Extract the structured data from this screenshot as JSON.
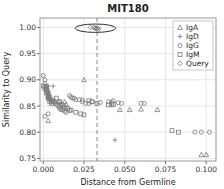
{
  "chart_data": {
    "type": "scatter",
    "title": "MIT180",
    "xlabel": "Distance from Germline",
    "ylabel": "Similarity to Query",
    "xlim": [
      -0.002,
      0.106
    ],
    "ylim": [
      0.745,
      1.018
    ],
    "xticks": [
      {
        "value": 0.0,
        "label": "0.000"
      },
      {
        "value": 0.025,
        "label": "0.025"
      },
      {
        "value": 0.05,
        "label": "0.050"
      },
      {
        "value": 0.075,
        "label": "0.075"
      },
      {
        "value": 0.1,
        "label": "0.100"
      }
    ],
    "yticks": [
      0.75,
      {
        "value": 0.8,
        "label": "0.80"
      },
      0.85,
      {
        "value": 0.9,
        "label": "0.90"
      },
      0.95,
      {
        "value": 1.0,
        "label": "1.00"
      }
    ],
    "grid": true,
    "legend": "upper right",
    "series": [
      {
        "name": "IgA",
        "color": "#7a7a7a",
        "marker": "triangle",
        "x": [
          0.003,
          0.01,
          0.013,
          0.014,
          0.025,
          0.047,
          0.053,
          0.06,
          0.07,
          0.097,
          0.1
        ],
        "values": [
          0.822,
          0.858,
          0.858,
          0.853,
          0.9,
          0.843,
          0.843,
          0.844,
          0.843,
          0.757,
          0.757
        ]
      },
      {
        "name": "IgD",
        "color": "#7a7a7a",
        "marker": "plus",
        "x": [
          0.003,
          0.003,
          0.004,
          0.006,
          0.044
        ],
        "values": [
          0.888,
          0.865,
          0.862,
          0.888,
          0.785
        ]
      },
      {
        "name": "IgG",
        "color": "#7a7a7a",
        "marker": "circle",
        "x": [
          0.0,
          0.001,
          0.001,
          0.001,
          0.002,
          0.002,
          0.002,
          0.002,
          0.003,
          0.003,
          0.003,
          0.003,
          0.004,
          0.004,
          0.004,
          0.005,
          0.005,
          0.006,
          0.007,
          0.007,
          0.008,
          0.009,
          0.01,
          0.01,
          0.011,
          0.012,
          0.013,
          0.014,
          0.016,
          0.017,
          0.018,
          0.019,
          0.02,
          0.022,
          0.024,
          0.024,
          0.026,
          0.028,
          0.03,
          0.035,
          0.04,
          0.042,
          0.043,
          0.046,
          0.048,
          0.06,
          0.062,
          0.001,
          0.003,
          0.093,
          0.097,
          0.102
        ],
        "values": [
          0.908,
          0.9,
          0.893,
          0.888,
          0.888,
          0.885,
          0.882,
          0.878,
          0.878,
          0.875,
          0.873,
          0.87,
          0.868,
          0.865,
          0.862,
          0.862,
          0.858,
          0.858,
          0.858,
          0.856,
          0.853,
          0.85,
          0.848,
          0.845,
          0.843,
          0.843,
          0.84,
          0.838,
          0.87,
          0.867,
          0.865,
          0.865,
          0.862,
          0.862,
          0.862,
          0.858,
          0.855,
          0.855,
          0.858,
          0.857,
          0.858,
          0.857,
          0.86,
          0.856,
          0.855,
          0.855,
          0.855,
          0.83,
          0.835,
          0.8,
          0.8,
          0.8
        ]
      },
      {
        "name": "IgM",
        "color": "#7a7a7a",
        "marker": "square",
        "x": [
          0.0,
          0.001,
          0.002,
          0.002,
          0.003,
          0.003,
          0.004,
          0.005,
          0.006,
          0.008,
          0.01,
          0.011,
          0.012,
          0.013,
          0.015,
          0.016,
          0.017,
          0.02,
          0.023,
          0.025,
          0.028,
          0.03,
          0.033,
          0.04,
          0.042,
          0.043,
          0.079,
          0.083
        ],
        "values": [
          0.888,
          0.883,
          0.88,
          0.875,
          0.868,
          0.865,
          0.858,
          0.855,
          0.86,
          0.865,
          0.858,
          0.853,
          0.85,
          0.847,
          0.845,
          0.842,
          0.842,
          0.838,
          0.835,
          0.833,
          0.86,
          0.858,
          0.855,
          0.852,
          0.853,
          0.853,
          0.803,
          0.8
        ]
      },
      {
        "name": "Query",
        "color": "#7a7a7a",
        "marker": "diamond",
        "x": [
          0.029,
          0.031,
          0.032,
          0.032,
          0.033,
          0.033,
          0.034
        ],
        "values": [
          1.0,
          1.0,
          0.999,
          0.998,
          0.998,
          0.997,
          0.997
        ]
      }
    ],
    "reference_lines": [
      {
        "x": 0.033,
        "color": "#888888",
        "line_style": "dashed"
      }
    ],
    "ellipse": {
      "center": [
        0.032,
        0.9985
      ],
      "width": 0.025,
      "height": 0.016,
      "color": "#333333"
    }
  }
}
